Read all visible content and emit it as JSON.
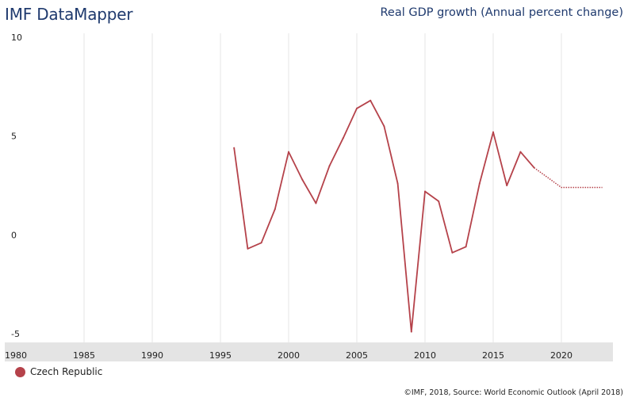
{
  "header": {
    "brand": "IMF DataMapper",
    "title": "Real GDP growth (Annual percent change)"
  },
  "footer": {
    "source": "©IMF, 2018, Source: World Economic Outlook (April 2018)"
  },
  "colors": {
    "series": "#b5424a",
    "grid": "#e6e6e6",
    "axis_band": "#e4e4e4",
    "text": "#222222",
    "brand": "#1f3a6e"
  },
  "chart_data": {
    "type": "line",
    "title": "Real GDP growth (Annual percent change)",
    "xlabel": "",
    "ylabel": "",
    "xlim": [
      1980,
      2023
    ],
    "ylim": [
      -5,
      10
    ],
    "x_ticks": [
      "1980",
      "1985",
      "1990",
      "1995",
      "2000",
      "2005",
      "2010",
      "2015",
      "2020"
    ],
    "y_ticks": [
      "10",
      "5",
      "0",
      "-5"
    ],
    "grid": "vertical",
    "legend_position": "bottom-left",
    "series": [
      {
        "name": "Czech Republic",
        "color": "#b5424a",
        "x": [
          1996,
          1997,
          1998,
          1999,
          2000,
          2001,
          2002,
          2003,
          2004,
          2005,
          2006,
          2007,
          2008,
          2009,
          2010,
          2011,
          2012,
          2013,
          2014,
          2015,
          2016,
          2017,
          2018
        ],
        "values": [
          4.4,
          -0.7,
          -0.4,
          1.3,
          4.2,
          2.8,
          1.6,
          3.5,
          4.9,
          6.4,
          6.8,
          5.5,
          2.6,
          -4.9,
          2.2,
          1.7,
          -0.9,
          -0.6,
          2.6,
          5.2,
          2.5,
          4.2,
          3.4
        ],
        "projection": {
          "x": [
            2018,
            2019,
            2020,
            2021,
            2022,
            2023
          ],
          "values": [
            3.4,
            2.9,
            2.4,
            2.4,
            2.4,
            2.4
          ]
        }
      }
    ]
  }
}
